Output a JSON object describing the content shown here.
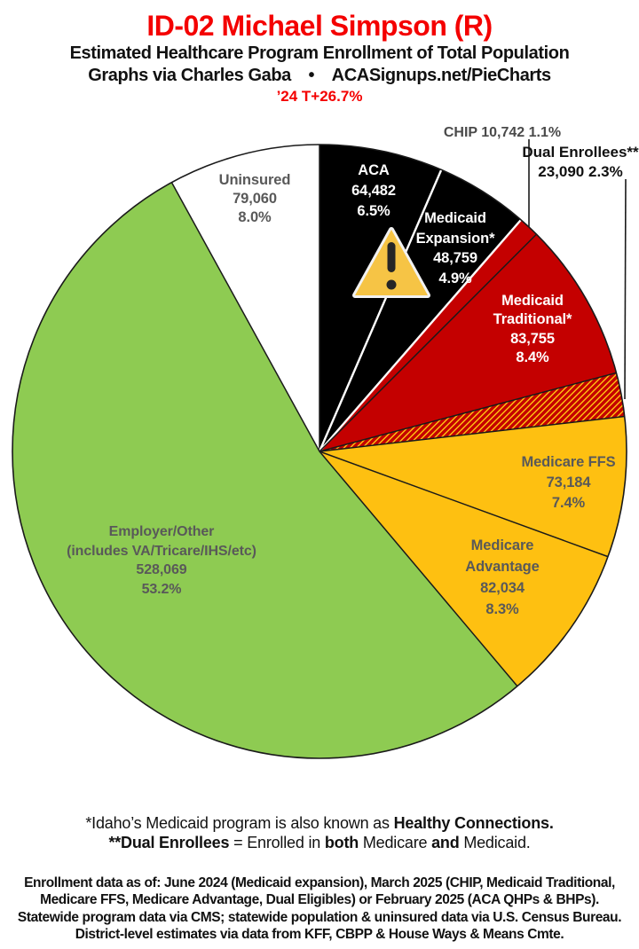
{
  "header": {
    "title": "ID-02 Michael Simpson (R)",
    "title_color": "#f40000",
    "subtitle": "Estimated Healthcare Program Enrollment of Total Population",
    "byline": "Graphs via Charles Gaba • ACASignups.net/PieCharts",
    "trend": "’24 T+26.7%",
    "trend_color": "#f40000"
  },
  "chart_data": {
    "type": "pie",
    "title": "Estimated Healthcare Program Enrollment of Total Population",
    "units": "people",
    "start_angle_deg": 0,
    "direction": "clockwise",
    "legend_position": "none",
    "label_style": "inside labels for large slices, leader-line callouts for CHIP and Dual Enrollees",
    "segments": [
      {
        "key": "aca",
        "label": "ACA",
        "enrollment": 64482,
        "value_display": "64,482",
        "pct": 6.5,
        "pct_display": "6.5%",
        "color": "#000000",
        "label_color": "#ffffff"
      },
      {
        "key": "medicaid-expansion",
        "label": "Medicaid Expansion*",
        "enrollment": 48759,
        "value_display": "48,759",
        "pct": 4.9,
        "pct_display": "4.9%",
        "color": "#000000",
        "label_color": "#ffffff"
      },
      {
        "key": "chip",
        "label": "CHIP",
        "enrollment": 10742,
        "value_display": "10,742",
        "pct": 1.1,
        "pct_display": "1.1%",
        "color": "#c40000",
        "label_color": "#4a4a4a",
        "callout_text": "CHIP 10,742 1.1%"
      },
      {
        "key": "medicaid-traditional",
        "label": "Medicaid Traditional*",
        "enrollment": 83755,
        "value_display": "83,755",
        "pct": 8.4,
        "pct_display": "8.4%",
        "color": "#c40000",
        "label_color": "#ffffff"
      },
      {
        "key": "dual-enrollees",
        "label": "Dual Enrollees**",
        "enrollment": 23090,
        "value_display": "23,090",
        "pct": 2.3,
        "pct_display": "2.3%",
        "color": "hatch",
        "label_color": "#111111",
        "callout_line2": "23,090 2.3%"
      },
      {
        "key": "medicare-ffs",
        "label": "Medicare FFS",
        "enrollment": 73184,
        "value_display": "73,184",
        "pct": 7.4,
        "pct_display": "7.4%",
        "color": "#fec011",
        "label_color": "#595959"
      },
      {
        "key": "medicare-advantage",
        "label": "Medicare Advantage",
        "enrollment": 82034,
        "value_display": "82,034",
        "pct": 8.3,
        "pct_display": "8.3%",
        "color": "#fec011",
        "label_color": "#595959"
      },
      {
        "key": "employer-other",
        "label": "Employer/Other",
        "sublabel": "(includes VA/Tricare/IHS/etc)",
        "enrollment": 528069,
        "value_display": "528,069",
        "pct": 53.2,
        "pct_display": "53.2%",
        "color": "#8ecb52",
        "label_color": "#595959"
      },
      {
        "key": "uninsured",
        "label": "Uninsured",
        "enrollment": 79060,
        "value_display": "79,060",
        "pct": 8.0,
        "pct_display": "8.0%",
        "color": "#ffffff",
        "label_color": "#595959"
      }
    ],
    "hatch_colors": {
      "stripe1": "#c40000",
      "stripe2": "#fec011"
    },
    "divider_colors": {
      "between_black_slices": "#ffffff",
      "default": "#1a1a1a"
    },
    "annotations": [
      {
        "type": "warning-triangle-icon",
        "glyph": "!",
        "fill": "#f6c445",
        "mark_color": "#262626",
        "position": "on ACA / Medicaid Expansion boundary"
      }
    ]
  },
  "footnotes": {
    "primary": [
      [
        {
          "text": "*Idaho’s Medicaid program is also known as ",
          "bold": false
        },
        {
          "text": "Healthy Connections.",
          "bold": true
        }
      ],
      [
        {
          "text": "**Dual Enrollees",
          "bold": true
        },
        {
          "text": " = Enrolled in ",
          "bold": false
        },
        {
          "text": "both",
          "bold": true
        },
        {
          "text": " Medicare ",
          "bold": false
        },
        {
          "text": "and",
          "bold": true
        },
        {
          "text": " Medicaid.",
          "bold": false
        }
      ]
    ],
    "source_lines": [
      "Enrollment data as of: June 2024 (Medicaid expansion), March 2025 (CHIP, Medicaid Traditional,",
      "Medicare FFS, Medicare Advantage, Dual Eligibles) or February 2025 (ACA QHPs & BHPs).",
      "Statewide program data via CMS; statewide population & uninsured data via U.S. Census Bureau.",
      "District-level estimates via data from KFF, CBPP & House Ways & Means Cmte."
    ]
  }
}
